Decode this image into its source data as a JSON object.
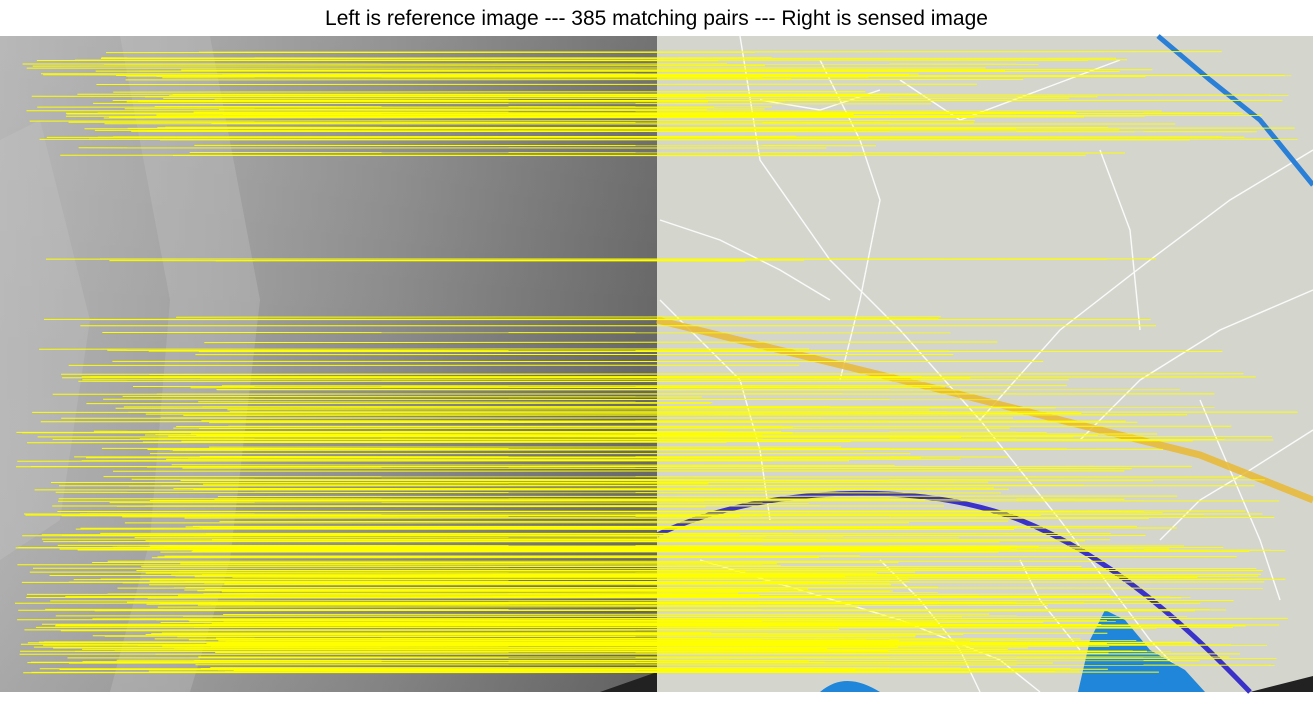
{
  "figure": {
    "title": "Left is reference image --- 385 matching pairs --- Right is sensed image",
    "match_count": 385,
    "left_image": "reference image",
    "right_image": "sensed image"
  },
  "colors": {
    "match_line": "#ffff00",
    "dem_dark": "#6e6e6e",
    "dem_light": "#bcbcbc",
    "map_background": "#d4d6ce",
    "road": "#ffffff",
    "river": "#2a7fd6",
    "highway": "#e8b830",
    "railway": "#3a32c8",
    "lake": "#1f86d9"
  }
}
